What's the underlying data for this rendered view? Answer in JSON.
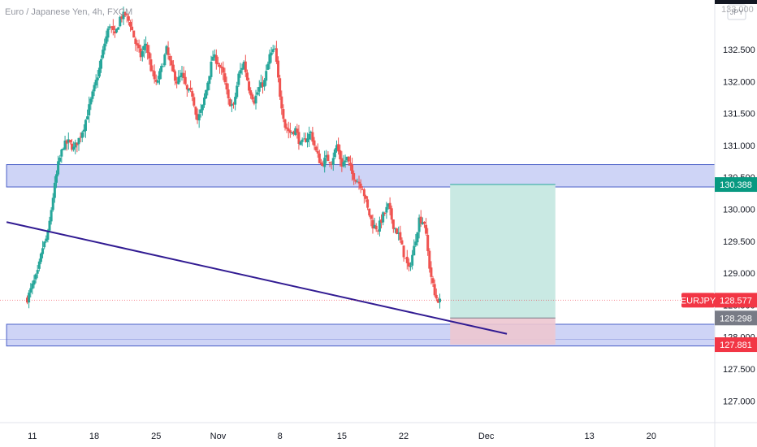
{
  "title": "Euro / Japanese Yen, 4h, FXCM",
  "currency_button": "JPY",
  "axis_top_label": "133.000",
  "colors": {
    "up": "#26a69a",
    "down": "#ef5350",
    "zone_fill": "#c5cdf5",
    "zone_edge": "#4a5fc8",
    "trend": "#311b92",
    "target": "#c9e9e3",
    "stop": "#edc6d0",
    "badge_target": "#089981",
    "badge_stop": "#f23645",
    "badge_price": "#787b86"
  },
  "chart_data": {
    "type": "candlestick",
    "symbol": "EURJPY",
    "y_axis": {
      "min": 126.8,
      "max": 133.15,
      "ticks": [
        "127.000",
        "127.500",
        "128.000",
        "128.500",
        "129.000",
        "129.500",
        "130.000",
        "130.500",
        "131.000",
        "131.500",
        "132.000",
        "132.500"
      ]
    },
    "x_axis": {
      "ticks": [
        {
          "label": "11",
          "t": 0.5
        },
        {
          "label": "18",
          "t": 6.5
        },
        {
          "label": "25",
          "t": 12.5
        },
        {
          "label": "Nov",
          "t": 18.5
        },
        {
          "label": "8",
          "t": 24.5
        },
        {
          "label": "15",
          "t": 30.5
        },
        {
          "label": "22",
          "t": 36.5
        },
        {
          "label": "Dec",
          "t": 44.5
        },
        {
          "label": "13",
          "t": 54.5
        },
        {
          "label": "20",
          "t": 60.5
        }
      ]
    },
    "path": [
      [
        0,
        128.6
      ],
      [
        0.5,
        128.8
      ],
      [
        1,
        129.0
      ],
      [
        1.5,
        129.4
      ],
      [
        2,
        129.6
      ],
      [
        2.5,
        130.2
      ],
      [
        3,
        130.7
      ],
      [
        3.5,
        131.0
      ],
      [
        4,
        131.05
      ],
      [
        4.5,
        130.95
      ],
      [
        5,
        131.1
      ],
      [
        5.5,
        131.3
      ],
      [
        6,
        131.6
      ],
      [
        6.5,
        131.9
      ],
      [
        7,
        132.2
      ],
      [
        7.5,
        132.6
      ],
      [
        8,
        132.9
      ],
      [
        8.5,
        132.7
      ],
      [
        9,
        133.0
      ],
      [
        9.5,
        133.05
      ],
      [
        10,
        132.9
      ],
      [
        10.5,
        132.6
      ],
      [
        11,
        132.4
      ],
      [
        11.5,
        132.6
      ],
      [
        12,
        132.2
      ],
      [
        12.5,
        131.95
      ],
      [
        13,
        132.2
      ],
      [
        13.5,
        132.5
      ],
      [
        14,
        132.2
      ],
      [
        14.5,
        132.0
      ],
      [
        15,
        132.1
      ],
      [
        15.5,
        131.85
      ],
      [
        16,
        131.8
      ],
      [
        16.5,
        131.4
      ],
      [
        17,
        131.6
      ],
      [
        17.5,
        132.0
      ],
      [
        18,
        132.4
      ],
      [
        18.5,
        132.3
      ],
      [
        19,
        132.1
      ],
      [
        19.5,
        131.7
      ],
      [
        20,
        131.6
      ],
      [
        20.5,
        132.1
      ],
      [
        21,
        132.3
      ],
      [
        21.5,
        131.9
      ],
      [
        22,
        131.7
      ],
      [
        22.5,
        131.9
      ],
      [
        23,
        132.0
      ],
      [
        23.5,
        132.4
      ],
      [
        24,
        132.5
      ],
      [
        24.5,
        131.8
      ],
      [
        25,
        131.3
      ],
      [
        25.5,
        131.2
      ],
      [
        26,
        131.25
      ],
      [
        26.5,
        131.0
      ],
      [
        27,
        131.1
      ],
      [
        27.5,
        131.2
      ],
      [
        28,
        130.9
      ],
      [
        28.5,
        130.7
      ],
      [
        29,
        130.8
      ],
      [
        29.5,
        130.75
      ],
      [
        30,
        131.0
      ],
      [
        30.5,
        130.7
      ],
      [
        31,
        130.8
      ],
      [
        31.5,
        130.55
      ],
      [
        32,
        130.45
      ],
      [
        32.5,
        130.35
      ],
      [
        33,
        130.0
      ],
      [
        33.5,
        129.75
      ],
      [
        34,
        129.7
      ],
      [
        34.5,
        129.9
      ],
      [
        35,
        130.05
      ],
      [
        35.5,
        129.75
      ],
      [
        36,
        129.6
      ],
      [
        36.5,
        129.3
      ],
      [
        37,
        129.05
      ],
      [
        37.5,
        129.4
      ],
      [
        38,
        129.85
      ],
      [
        38.5,
        129.8
      ],
      [
        39,
        129.1
      ],
      [
        39.5,
        128.65
      ],
      [
        40,
        128.55
      ]
    ],
    "trendline": {
      "from": [
        -2,
        129.8
      ],
      "to": [
        46.5,
        128.05
      ]
    },
    "zones": [
      {
        "name": "resistance-zone",
        "t1": -2,
        "t2": 71,
        "top": 130.7,
        "bottom": 130.35
      },
      {
        "name": "support-zone",
        "t1": -2,
        "t2": 71,
        "top": 128.2,
        "bottom": 127.86
      }
    ],
    "position": {
      "t1": 41,
      "t2": 51.2,
      "entry": 128.298,
      "target": 130.388,
      "stop": 127.881
    },
    "last_price": 128.577,
    "price_labels": [
      {
        "name": "target-price-badge",
        "value": "130.388",
        "price": 130.388,
        "style": "target"
      },
      {
        "name": "last-price-badge",
        "value": "128.577",
        "price": 128.577,
        "style": "stop",
        "symbol": "EURJPY"
      },
      {
        "name": "entry-price-badge",
        "value": "128.298",
        "price": 128.298,
        "style": "price"
      },
      {
        "name": "stop-price-badge",
        "value": "127.881",
        "price": 127.881,
        "style": "stop"
      }
    ]
  }
}
